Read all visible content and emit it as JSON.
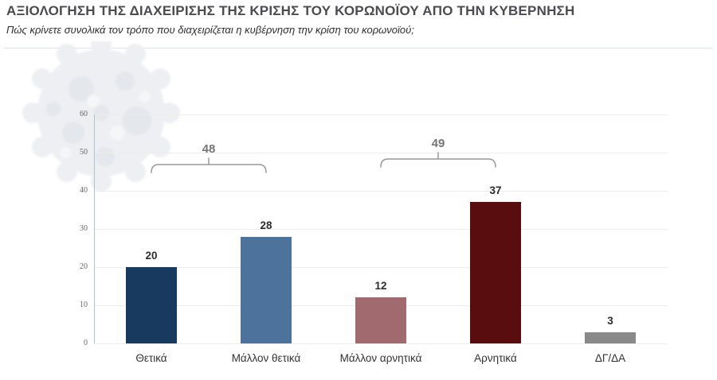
{
  "header": {
    "title": "ΑΞΙΟΛΟΓΗΣΗ ΤΗΣ ΔΙΑΧΕΙΡΙΣΗΣ ΤΗΣ ΚΡΙΣΗΣ ΤΟΥ ΚΟΡΩΝΟΪΟΥ ΑΠΟ ΤΗΝ ΚΥΒΕΡΝΗΣΗ",
    "subtitle": "Πώς κρίνετε συνολικά τον τρόπο που διαχειρίζεται η κυβέρνηση την κρίση του κορωνοϊού;"
  },
  "watermark": {
    "icon": "coronavirus-icon",
    "color": "#edeff2"
  },
  "chart_data": {
    "type": "bar",
    "title": "ΑΞΙΟΛΟΓΗΣΗ ΤΗΣ ΔΙΑΧΕΙΡΙΣΗΣ ΤΗΣ ΚΡΙΣΗΣ ΤΟΥ ΚΟΡΩΝΟΪΟΥ ΑΠΟ ΤΗΝ ΚΥΒΕΡΝΗΣΗ",
    "subtitle": "Πώς κρίνετε συνολικά τον τρόπο που διαχειρίζεται η κυβέρνηση την κρίση του κορωνοϊού;",
    "categories": [
      "Θετικά",
      "Μάλλον θετικά",
      "Μάλλον αρνητικά",
      "Αρνητικά",
      "ΔΓ/ΔΑ"
    ],
    "values": [
      20,
      28,
      12,
      37,
      3
    ],
    "bar_colors": [
      "#173a5e",
      "#4d729b",
      "#a06a6e",
      "#5a0d0e",
      "#898989"
    ],
    "xlabel": "",
    "ylabel": "",
    "ylim": [
      0,
      60
    ],
    "ytick_step": 10,
    "ytick_labels": [
      "0",
      "10",
      "20",
      "30",
      "40",
      "50",
      "60"
    ],
    "grid": true,
    "legend_position": "none",
    "group_annotations": [
      {
        "label": "48",
        "from_index": 0,
        "to_index": 1,
        "meaning": "Θετικά + Μάλλον θετικά"
      },
      {
        "label": "49",
        "from_index": 2,
        "to_index": 3,
        "meaning": "Μάλλον αρνητικά + Αρνητικά"
      }
    ],
    "style_colors": {
      "value_label": "#2b2b2b",
      "category_label": "#333333",
      "tick_label": "#6b675f",
      "gridline": "#ededed",
      "axis_line": "#b7bfcc",
      "bracket": "#999999",
      "bracket_label": "#757575"
    }
  }
}
